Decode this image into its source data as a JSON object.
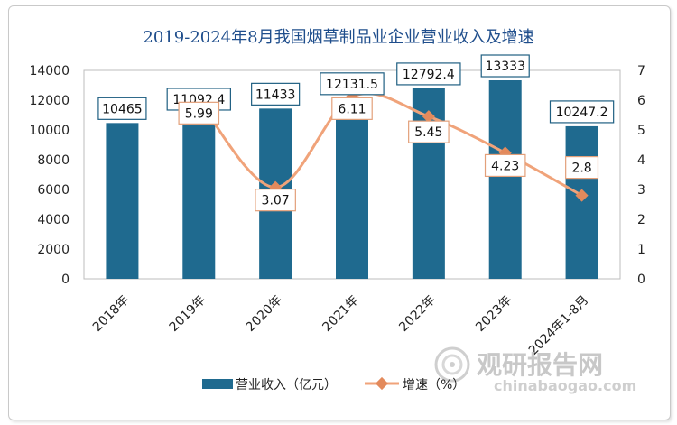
{
  "chart_data": {
    "type": "bar",
    "title": "2019-2024年8月我国烟草制品业企业营业收入及增速",
    "categories": [
      "2018年",
      "2019年",
      "2020年",
      "2021年",
      "2022年",
      "2023年",
      "2024年1-8月"
    ],
    "series": [
      {
        "name": "营业收入（亿元）",
        "type": "bar",
        "axis": "left",
        "values": [
          10465,
          11092.4,
          11433,
          12131.5,
          12792.4,
          13333,
          10247.2
        ],
        "labels": [
          "10465",
          "11092.4",
          "11433",
          "12131.5",
          "12792.4",
          "13333",
          "10247.2"
        ]
      },
      {
        "name": "增速（%）",
        "type": "line",
        "axis": "right",
        "values": [
          null,
          5.99,
          3.07,
          6.11,
          5.45,
          4.23,
          2.8
        ],
        "labels": [
          null,
          "5.99",
          "3.07",
          "6.11",
          "5.45",
          "4.23",
          "2.8"
        ]
      }
    ],
    "ylim_left": [
      0,
      14000
    ],
    "yticks_left": [
      "0",
      "2000",
      "4000",
      "6000",
      "8000",
      "10000",
      "12000",
      "14000"
    ],
    "ylim_right": [
      0,
      7
    ],
    "yticks_right": [
      "0",
      "1",
      "2",
      "3",
      "4",
      "5",
      "6",
      "7"
    ],
    "legend_position": "bottom",
    "colors": {
      "bar": "#1f6a8f",
      "line": "#f0a37a",
      "marker": "#e38a5c",
      "title": "#1f4e8c"
    }
  },
  "watermark": {
    "main": "观研报告网",
    "sub": "chinabaogao.com"
  }
}
